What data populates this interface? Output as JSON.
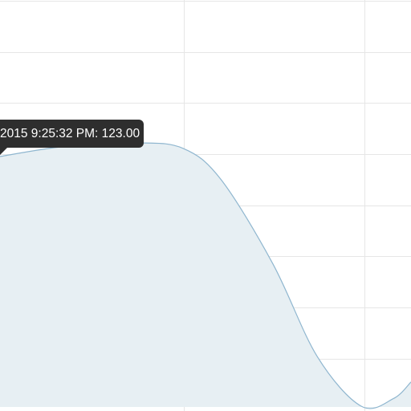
{
  "chart_data": {
    "type": "area",
    "series": [
      {
        "values": [
          118.5,
          123.0,
          121.5,
          102.0,
          61.5,
          36.0,
          44.0
        ]
      }
    ],
    "grid": true,
    "legend": "none",
    "colors": {
      "line": "#8fb6cf",
      "fill": "#e7eff3",
      "grid": "#e6e6e6",
      "tooltip": "#2e2e2e"
    }
  },
  "tooltip": {
    "text": "2015 9:25:32 PM: 123.00"
  }
}
